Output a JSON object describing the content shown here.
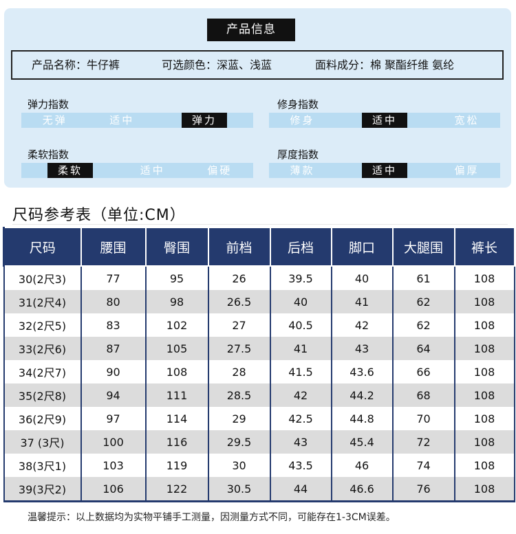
{
  "product_info": {
    "title": "产品信息",
    "name": "产品名称：牛仔裤",
    "colors": "可选颜色：深蓝、浅蓝",
    "material": "面料成分：棉 聚酯纤维 氨纶"
  },
  "indices": {
    "elasticity": {
      "label": "弹力指数",
      "options": [
        "无弹",
        "适中",
        "弹力"
      ],
      "selected": 2
    },
    "fit": {
      "label": "修身指数",
      "options": [
        "修身",
        "适中",
        "宽松"
      ],
      "selected": 1
    },
    "softness": {
      "label": "柔软指数",
      "options": [
        "柔软",
        "适中",
        "偏硬"
      ],
      "selected": 0
    },
    "thickness": {
      "label": "厚度指数",
      "options": [
        "薄款",
        "适中",
        "偏厚"
      ],
      "selected": 1
    }
  },
  "size_table": {
    "heading": "尺码参考表（单位:CM）",
    "headers": [
      "尺码",
      "腰围",
      "臀围",
      "前档",
      "后档",
      "脚口",
      "大腿围",
      "裤长"
    ],
    "rows": [
      [
        "30(2尺3)",
        "77",
        "95",
        "26",
        "39.5",
        "40",
        "61",
        "108"
      ],
      [
        "31(2尺4)",
        "80",
        "98",
        "26.5",
        "40",
        "41",
        "62",
        "108"
      ],
      [
        "32(2尺5)",
        "83",
        "102",
        "27",
        "40.5",
        "42",
        "62",
        "108"
      ],
      [
        "33(2尺6)",
        "87",
        "105",
        "27.5",
        "41",
        "43",
        "64",
        "108"
      ],
      [
        "34(2尺7)",
        "90",
        "108",
        "28",
        "41.5",
        "43.6",
        "66",
        "108"
      ],
      [
        "35(2尺8)",
        "94",
        "111",
        "28.5",
        "42",
        "44.2",
        "68",
        "108"
      ],
      [
        "36(2尺9)",
        "97",
        "114",
        "29",
        "42.5",
        "44.8",
        "70",
        "108"
      ],
      [
        "37 (3尺)",
        "100",
        "116",
        "29.5",
        "43",
        "45.4",
        "72",
        "108"
      ],
      [
        "38(3尺1)",
        "103",
        "119",
        "30",
        "43.5",
        "46",
        "74",
        "108"
      ],
      [
        "39(3尺2)",
        "106",
        "122",
        "30.5",
        "44",
        "46.6",
        "76",
        "108"
      ]
    ]
  },
  "footer_note": "温馨提示：以上数据均为实物平铺手工测量，因测量方式不同，可能存在1-3CM误差。"
}
